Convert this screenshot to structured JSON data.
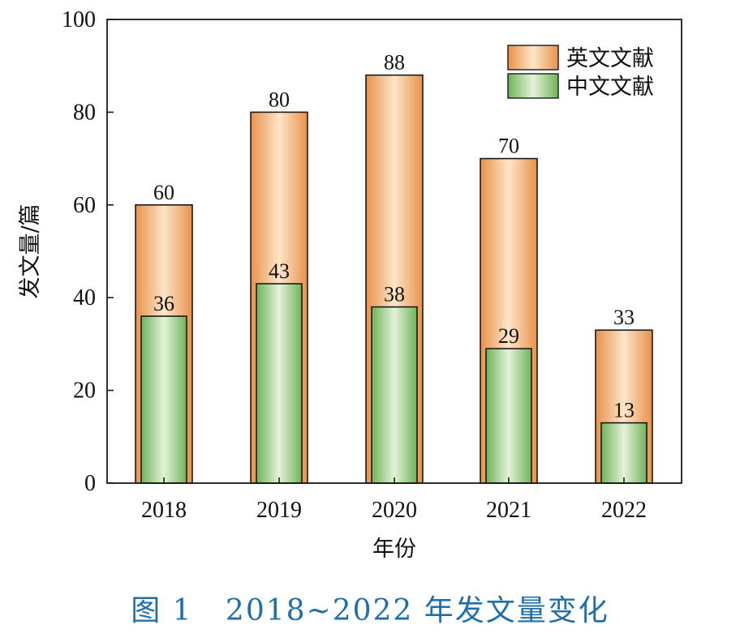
{
  "caption": "图 1   2018~2022 年发文量变化",
  "chart_data": {
    "type": "bar",
    "title": "",
    "xlabel": "年份",
    "ylabel": "发文量/篇",
    "categories": [
      "2018",
      "2019",
      "2020",
      "2021",
      "2022"
    ],
    "series": [
      {
        "name": "英文文献",
        "values": [
          60,
          80,
          88,
          70,
          33
        ],
        "color": "#e8914a",
        "light_color": "#fde6c8"
      },
      {
        "name": "中文文献",
        "values": [
          36,
          43,
          38,
          29,
          13
        ],
        "color": "#6fb35a",
        "light_color": "#e4f3d8"
      }
    ],
    "bar_layout": "overlapped",
    "ylim": [
      0,
      100
    ],
    "yticks": [
      0,
      20,
      40,
      60,
      80,
      100
    ],
    "data_labels": true,
    "grid": false,
    "legend_position": "top-right"
  }
}
